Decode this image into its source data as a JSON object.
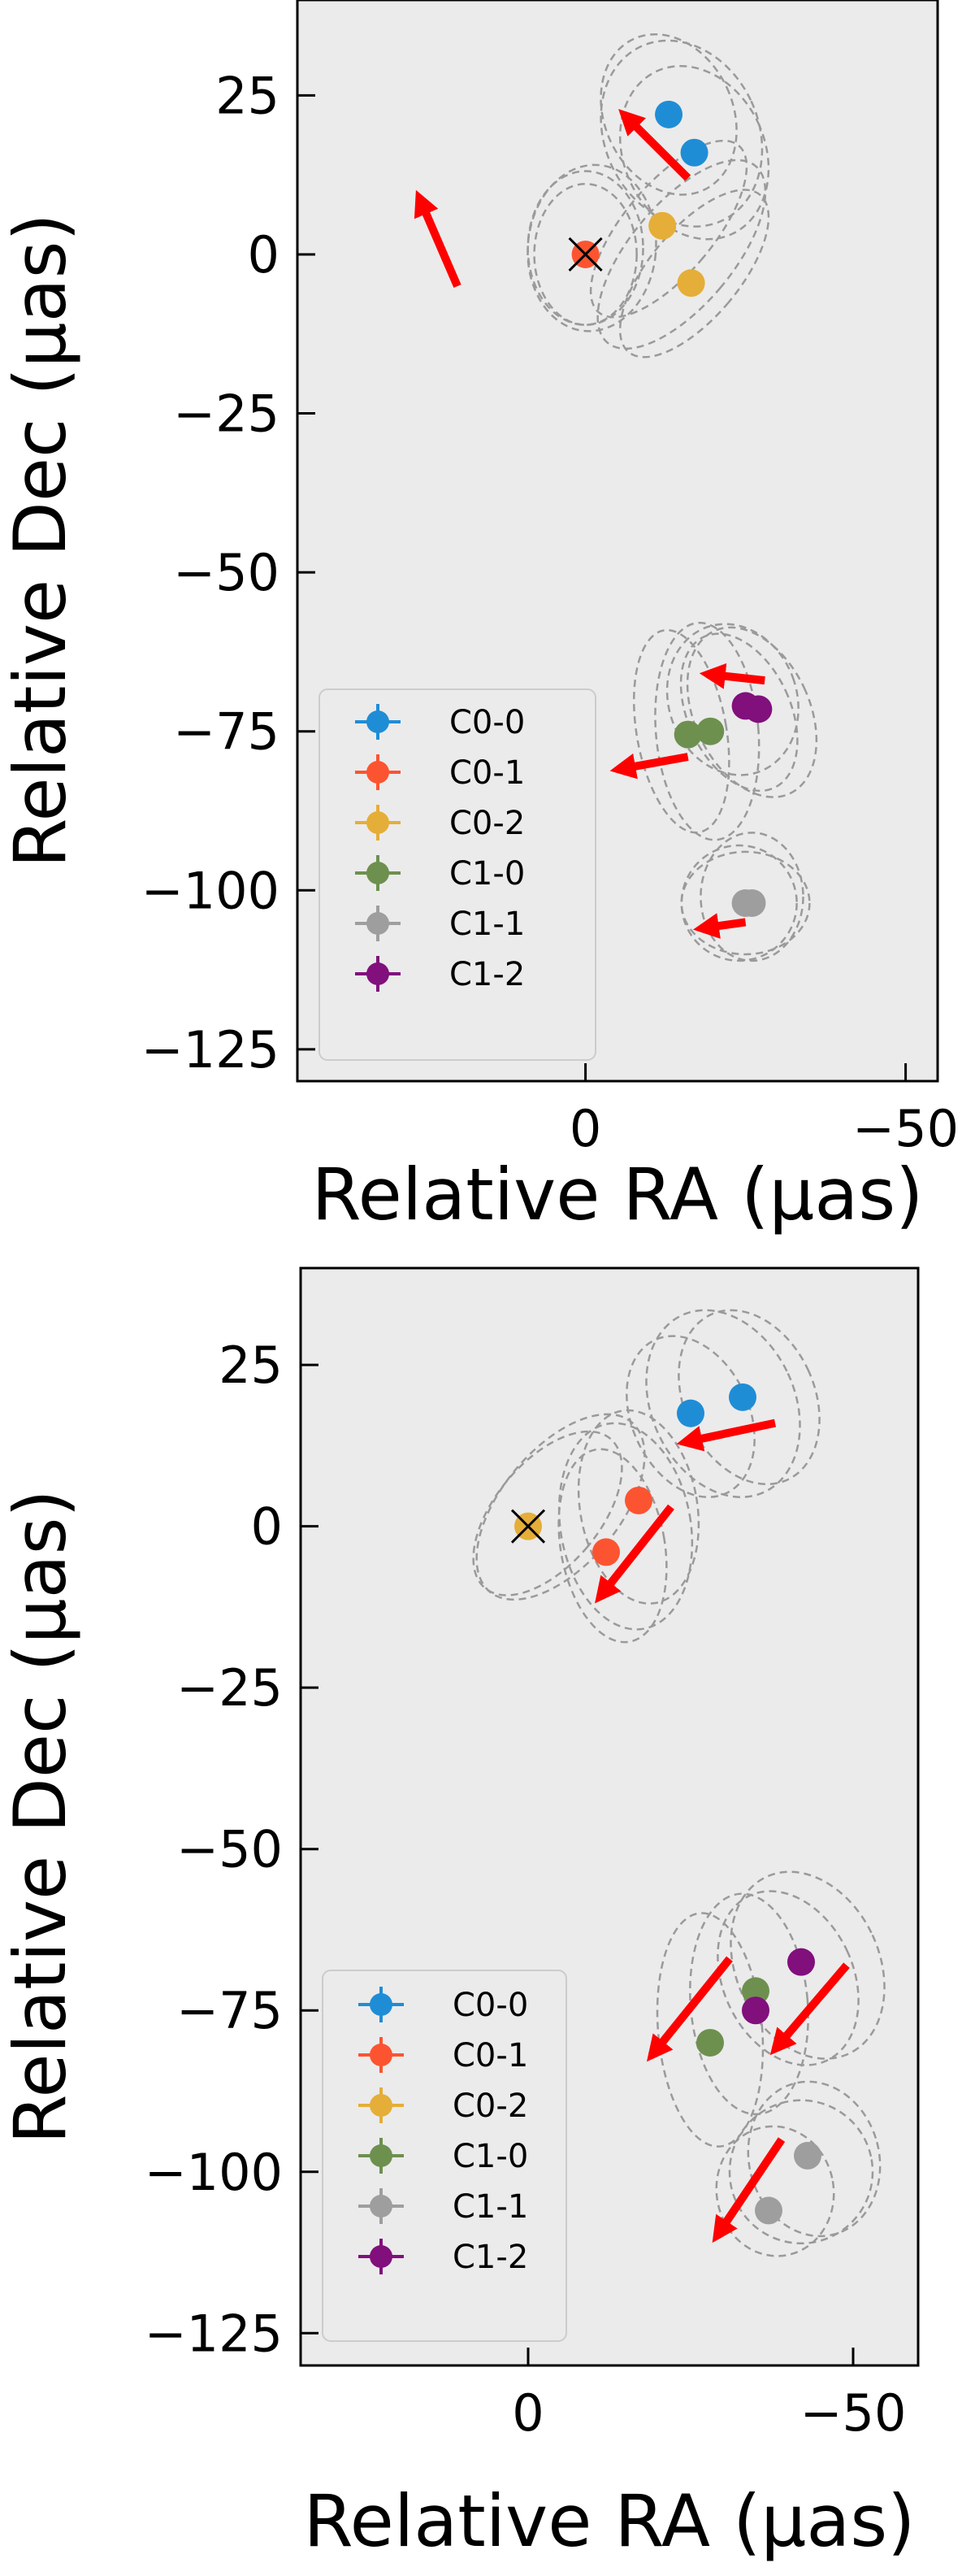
{
  "chart_data": [
    {
      "type": "scatter",
      "xlabel": "Relative RA (μas)",
      "ylabel": "Relative Dec (μas)",
      "xlim": [
        45,
        -55
      ],
      "ylim": [
        -130,
        40
      ],
      "x_ticks": [
        0,
        -50
      ],
      "y_ticks": [
        25,
        0,
        -25,
        -50,
        -75,
        -100,
        -125
      ],
      "x_tick_labels": [
        "0",
        "−50"
      ],
      "y_tick_labels": [
        "25",
        "0",
        "−25",
        "−50",
        "−75",
        "−100",
        "−125"
      ],
      "grid": false,
      "background": "#ebebeb",
      "legend": {
        "placement": "lower-left",
        "entries": [
          {
            "label": "C0-0",
            "color": "#1f8dd6"
          },
          {
            "label": "C0-1",
            "color": "#fc5431"
          },
          {
            "label": "C0-2",
            "color": "#e5ae38"
          },
          {
            "label": "C1-0",
            "color": "#6d904f"
          },
          {
            "label": "C1-1",
            "color": "#9e9e9e"
          },
          {
            "label": "C1-2",
            "color": "#810f7c"
          }
        ]
      },
      "reference": {
        "label": "C0-1",
        "x": 0,
        "y": 0
      },
      "series": [
        {
          "name": "C0-0",
          "points": [
            [
              -13,
              22
            ],
            [
              -17,
              16
            ]
          ]
        },
        {
          "name": "C0-1",
          "points": [
            [
              0,
              0
            ]
          ]
        },
        {
          "name": "C0-2",
          "points": [
            [
              -12,
              4.5
            ],
            [
              -16.5,
              -4.5
            ]
          ]
        },
        {
          "name": "C1-0",
          "points": [
            [
              -16,
              -75.5
            ],
            [
              -19.5,
              -75
            ]
          ]
        },
        {
          "name": "C1-1",
          "points": [
            [
              -26,
              -102
            ],
            [
              -25,
              -102
            ]
          ]
        },
        {
          "name": "C1-2",
          "points": [
            [
              -25,
              -71
            ],
            [
              -27,
              -71.5
            ]
          ]
        }
      ],
      "arrows": [
        {
          "from": [
            -16,
            12
          ],
          "to": [
            -6,
            22
          ]
        },
        {
          "from": [
            20,
            -5
          ],
          "to": [
            26,
            9
          ]
        },
        {
          "from": [
            -28,
            -67
          ],
          "to": [
            -19,
            -66
          ]
        },
        {
          "from": [
            -16,
            -79
          ],
          "to": [
            -5,
            -81
          ]
        },
        {
          "from": [
            -25,
            -105
          ],
          "to": [
            -18,
            -106
          ]
        }
      ],
      "ellipses": [
        {
          "center": [
            -13,
            22
          ],
          "rx": 10,
          "ry": 13,
          "rot": -25
        },
        {
          "center": [
            -15,
            19
          ],
          "rx": 12,
          "ry": 15,
          "rot": -25
        },
        {
          "center": [
            -17,
            16
          ],
          "rx": 11,
          "ry": 14,
          "rot": -25
        },
        {
          "center": [
            0,
            0
          ],
          "rx": 8,
          "ry": 11,
          "rot": 0
        },
        {
          "center": [
            0,
            1
          ],
          "rx": 9,
          "ry": 12,
          "rot": 0
        },
        {
          "center": [
            -1,
            1
          ],
          "rx": 10,
          "ry": 13,
          "rot": 5
        },
        {
          "center": [
            -13,
            4
          ],
          "rx": 7,
          "ry": 17,
          "rot": 40
        },
        {
          "center": [
            -15,
            0
          ],
          "rx": 8,
          "ry": 18,
          "rot": 40
        },
        {
          "center": [
            -17,
            -3
          ],
          "rx": 7,
          "ry": 16,
          "rot": 40
        },
        {
          "center": [
            -15,
            -75
          ],
          "rx": 7,
          "ry": 16,
          "rot": -10
        },
        {
          "center": [
            -19,
            -75
          ],
          "rx": 8,
          "ry": 17,
          "rot": -5
        },
        {
          "center": [
            -24,
            -72
          ],
          "rx": 8,
          "ry": 13,
          "rot": -25
        },
        {
          "center": [
            -26,
            -72
          ],
          "rx": 9,
          "ry": 14,
          "rot": -25
        },
        {
          "center": [
            -23,
            -70
          ],
          "rx": 10,
          "ry": 12,
          "rot": -20
        },
        {
          "center": [
            -24,
            -102
          ],
          "rx": 9,
          "ry": 9,
          "rot": 0
        },
        {
          "center": [
            -25,
            -102
          ],
          "rx": 10,
          "ry": 8,
          "rot": 0
        },
        {
          "center": [
            -26,
            -101
          ],
          "rx": 8,
          "ry": 10,
          "rot": 0
        }
      ]
    },
    {
      "type": "scatter",
      "xlabel": "Relative RA (μas)",
      "ylabel": "Relative Dec (μas)",
      "xlim": [
        35,
        -60
      ],
      "ylim": [
        -130,
        40
      ],
      "x_ticks": [
        0,
        -50
      ],
      "y_ticks": [
        25,
        0,
        -25,
        -50,
        -75,
        -100,
        -125
      ],
      "x_tick_labels": [
        "0",
        "−50"
      ],
      "y_tick_labels": [
        "25",
        "0",
        "−25",
        "−50",
        "−75",
        "−100",
        "−125"
      ],
      "grid": false,
      "background": "#ebebeb",
      "legend": {
        "placement": "lower-left",
        "entries": [
          {
            "label": "C0-0",
            "color": "#1f8dd6"
          },
          {
            "label": "C0-1",
            "color": "#fc5431"
          },
          {
            "label": "C0-2",
            "color": "#e5ae38"
          },
          {
            "label": "C1-0",
            "color": "#6d904f"
          },
          {
            "label": "C1-1",
            "color": "#9e9e9e"
          },
          {
            "label": "C1-2",
            "color": "#810f7c"
          }
        ]
      },
      "reference": {
        "label": "C0-2",
        "x": 0,
        "y": 0
      },
      "series": [
        {
          "name": "C0-0",
          "points": [
            [
              -25,
              17.5
            ],
            [
              -33,
              20
            ]
          ]
        },
        {
          "name": "C0-1",
          "points": [
            [
              -12,
              -4
            ],
            [
              -17,
              4
            ]
          ]
        },
        {
          "name": "C0-2",
          "points": [
            [
              0,
              0
            ]
          ]
        },
        {
          "name": "C1-0",
          "points": [
            [
              -28,
              -80
            ],
            [
              -35,
              -72
            ]
          ]
        },
        {
          "name": "C1-1",
          "points": [
            [
              -37,
              -106
            ],
            [
              -43,
              -97.5
            ]
          ]
        },
        {
          "name": "C1-2",
          "points": [
            [
              -35,
              -75
            ],
            [
              -42,
              -67.5
            ]
          ]
        }
      ],
      "arrows": [
        {
          "from": [
            -38,
            16
          ],
          "to": [
            -24,
            13
          ]
        },
        {
          "from": [
            -22,
            3
          ],
          "to": [
            -11,
            -11
          ]
        },
        {
          "from": [
            -31,
            -67
          ],
          "to": [
            -19,
            -82
          ]
        },
        {
          "from": [
            -49,
            -68
          ],
          "to": [
            -38,
            -81
          ]
        },
        {
          "from": [
            -39,
            -95
          ],
          "to": [
            -29,
            -110
          ]
        }
      ],
      "ellipses": [
        {
          "center": [
            -25,
            17
          ],
          "rx": 9,
          "ry": 13,
          "rot": -25
        },
        {
          "center": [
            -30,
            19
          ],
          "rx": 11,
          "ry": 15,
          "rot": -25
        },
        {
          "center": [
            -34,
            20
          ],
          "rx": 10,
          "ry": 14,
          "rot": -25
        },
        {
          "center": [
            -13,
            -3
          ],
          "rx": 8,
          "ry": 15,
          "rot": -10
        },
        {
          "center": [
            -15,
            0
          ],
          "rx": 10,
          "ry": 16,
          "rot": -10
        },
        {
          "center": [
            -17,
            3
          ],
          "rx": 9,
          "ry": 15,
          "rot": -10
        },
        {
          "center": [
            -3,
            2
          ],
          "rx": 8,
          "ry": 15,
          "rot": 40
        },
        {
          "center": [
            -5,
            3
          ],
          "rx": 9,
          "ry": 17,
          "rot": 40
        },
        {
          "center": [
            -28,
            -78
          ],
          "rx": 8,
          "ry": 18,
          "rot": -5
        },
        {
          "center": [
            -34,
            -74
          ],
          "rx": 9,
          "ry": 17,
          "rot": -5
        },
        {
          "center": [
            -40,
            -70
          ],
          "rx": 10,
          "ry": 14,
          "rot": -25
        },
        {
          "center": [
            -43,
            -68
          ],
          "rx": 11,
          "ry": 15,
          "rot": -25
        },
        {
          "center": [
            -38,
            -103
          ],
          "rx": 9,
          "ry": 10,
          "rot": -10
        },
        {
          "center": [
            -42,
            -100
          ],
          "rx": 11,
          "ry": 11,
          "rot": -10
        },
        {
          "center": [
            -44,
            -98
          ],
          "rx": 10,
          "ry": 12,
          "rot": -15
        }
      ]
    }
  ]
}
